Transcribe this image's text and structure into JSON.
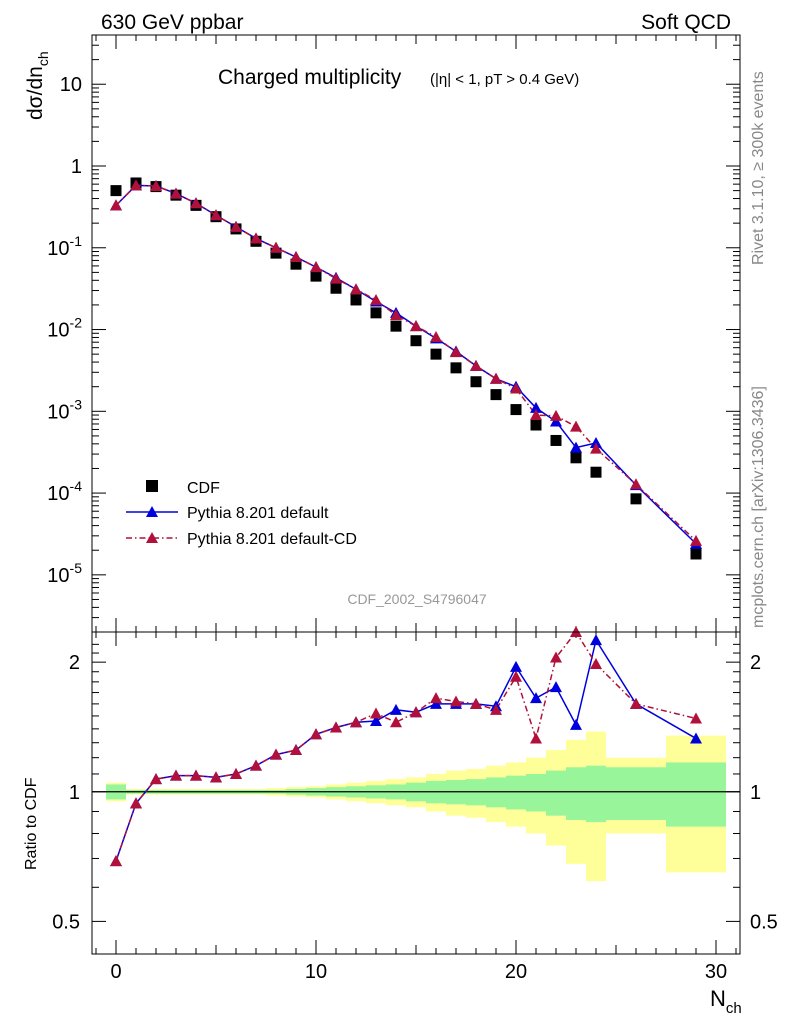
{
  "header": {
    "left": "630 GeV ppbar",
    "right": "Soft QCD"
  },
  "side_labels": {
    "rivet": "Rivet 3.1.10, ≥ 300k events",
    "mcplots": "mcplots.cern.ch [arXiv:1306.3436]"
  },
  "analysis_id": "CDF_2002_S4796047",
  "colors": {
    "cdf": "#000000",
    "pythia_default": "#0000dd",
    "pythia_cd": "#b0103a",
    "band_green": "#99f599",
    "band_yellow": "#ffff99"
  },
  "chart_data": [
    {
      "type": "scatter",
      "title": "Charged multiplicity",
      "title_cut": "(|η| < 1, pT > 0.4 GeV)",
      "ylabel": "dσ/dn_ch",
      "yscale": "log",
      "ylim": [
        2e-06,
        40
      ],
      "xlim": [
        -1.2,
        31.2
      ],
      "ytick_labels": [
        "10",
        "1",
        "10^-1",
        "10^-2",
        "10^-3",
        "10^-4",
        "10^-5"
      ],
      "legend_position": "bottom-left",
      "x": [
        0,
        1,
        2,
        3,
        4,
        5,
        6,
        7,
        8,
        9,
        10,
        11,
        12,
        13,
        14,
        15,
        16,
        17,
        18,
        19,
        20,
        21,
        22,
        23,
        24,
        26,
        29
      ],
      "series": [
        {
          "name": "CDF",
          "style": "square",
          "values": [
            0.5,
            0.62,
            0.56,
            0.44,
            0.33,
            0.24,
            0.17,
            0.12,
            0.086,
            0.063,
            0.045,
            0.032,
            0.023,
            0.016,
            0.011,
            0.0073,
            0.005,
            0.0034,
            0.0023,
            0.0016,
            0.00105,
            0.00068,
            0.00044,
            0.00027,
            0.00018,
            8.5e-05,
            1.8e-05
          ]
        },
        {
          "name": "Pythia 8.201 default",
          "style": "solid",
          "values": [
            0.33,
            0.58,
            0.57,
            0.46,
            0.35,
            0.25,
            0.18,
            0.13,
            0.1,
            0.077,
            0.058,
            0.043,
            0.031,
            0.022,
            0.016,
            0.011,
            0.0078,
            0.0054,
            0.0036,
            0.0025,
            0.002,
            0.0011,
            0.00075,
            0.00036,
            0.00041,
            0.000125,
            2.4e-05
          ]
        },
        {
          "name": "Pythia 8.201 default-CD",
          "style": "dashdot",
          "values": [
            0.33,
            0.58,
            0.57,
            0.46,
            0.35,
            0.25,
            0.18,
            0.13,
            0.1,
            0.077,
            0.058,
            0.042,
            0.031,
            0.023,
            0.015,
            0.011,
            0.0081,
            0.0053,
            0.0036,
            0.0025,
            0.0019,
            0.0009,
            0.00088,
            0.00065,
            0.00035,
            0.000128,
            2.6e-05
          ]
        }
      ]
    },
    {
      "type": "line",
      "ylabel": "Ratio to CDF",
      "xlabel": "N_ch",
      "yscale": "log",
      "ylim": [
        0.42,
        2.35
      ],
      "y_ticks": [
        0.5,
        1,
        2
      ],
      "ytick_labels": [
        "0.5",
        "1",
        "2"
      ],
      "x_ticks": [
        0,
        10,
        20,
        30
      ],
      "xtick_labels": [
        "0",
        "10",
        "20",
        "30"
      ],
      "x": [
        0,
        1,
        2,
        3,
        4,
        5,
        6,
        7,
        8,
        9,
        10,
        11,
        12,
        13,
        14,
        15,
        16,
        17,
        18,
        19,
        20,
        21,
        22,
        23,
        24,
        26,
        29
      ],
      "series": [
        {
          "name": "Pythia 8.201 default",
          "style": "solid",
          "values": [
            0.69,
            0.94,
            1.07,
            1.09,
            1.09,
            1.08,
            1.1,
            1.15,
            1.22,
            1.25,
            1.36,
            1.41,
            1.45,
            1.46,
            1.55,
            1.53,
            1.6,
            1.6,
            1.6,
            1.58,
            1.95,
            1.65,
            1.75,
            1.43,
            2.25,
            1.6,
            1.33
          ]
        },
        {
          "name": "Pythia 8.201 default-CD",
          "style": "dashdot",
          "values": [
            0.69,
            0.94,
            1.07,
            1.09,
            1.09,
            1.08,
            1.1,
            1.15,
            1.22,
            1.25,
            1.36,
            1.41,
            1.45,
            1.52,
            1.45,
            1.53,
            1.65,
            1.62,
            1.6,
            1.55,
            1.85,
            1.33,
            2.05,
            2.35,
            1.98,
            1.6,
            1.48
          ]
        }
      ],
      "bands": {
        "edges": [
          -0.5,
          0.5,
          1.5,
          2.5,
          3.5,
          4.5,
          5.5,
          6.5,
          7.5,
          8.5,
          9.5,
          10.5,
          11.5,
          12.5,
          13.5,
          14.5,
          15.5,
          16.5,
          17.5,
          18.5,
          19.5,
          20.5,
          21.5,
          22.5,
          23.5,
          24.5,
          27.5,
          30.5
        ],
        "green": [
          0.04,
          0.01,
          0.01,
          0.01,
          0.01,
          0.01,
          0.01,
          0.01,
          0.01,
          0.015,
          0.02,
          0.025,
          0.03,
          0.035,
          0.04,
          0.05,
          0.06,
          0.065,
          0.07,
          0.08,
          0.09,
          0.1,
          0.12,
          0.14,
          0.15,
          0.14,
          0.17
        ],
        "yellow": [
          0.05,
          0.015,
          0.015,
          0.015,
          0.015,
          0.015,
          0.015,
          0.015,
          0.02,
          0.025,
          0.03,
          0.04,
          0.05,
          0.06,
          0.07,
          0.08,
          0.1,
          0.12,
          0.13,
          0.15,
          0.17,
          0.2,
          0.25,
          0.32,
          0.38,
          0.2,
          0.35
        ]
      }
    }
  ]
}
